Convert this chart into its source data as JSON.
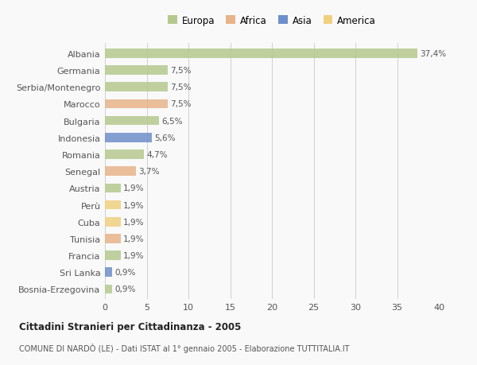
{
  "countries": [
    "Albania",
    "Germania",
    "Serbia/Montenegro",
    "Marocco",
    "Bulgaria",
    "Indonesia",
    "Romania",
    "Senegal",
    "Austria",
    "Perù",
    "Cuba",
    "Tunisia",
    "Francia",
    "Sri Lanka",
    "Bosnia-Erzegovina"
  ],
  "values": [
    37.4,
    7.5,
    7.5,
    7.5,
    6.5,
    5.6,
    4.7,
    3.7,
    1.9,
    1.9,
    1.9,
    1.9,
    1.9,
    0.9,
    0.9
  ],
  "labels": [
    "37,4%",
    "7,5%",
    "7,5%",
    "7,5%",
    "6,5%",
    "5,6%",
    "4,7%",
    "3,7%",
    "1,9%",
    "1,9%",
    "1,9%",
    "1,9%",
    "1,9%",
    "0,9%",
    "0,9%"
  ],
  "colors": [
    "#b5c98e",
    "#b5c98e",
    "#b5c98e",
    "#e8b48a",
    "#b5c98e",
    "#6e8fcb",
    "#b5c98e",
    "#e8b48a",
    "#b5c98e",
    "#f0d080",
    "#f0d080",
    "#e8b48a",
    "#b5c98e",
    "#6e8fcb",
    "#b5c98e"
  ],
  "legend_labels": [
    "Europa",
    "Africa",
    "Asia",
    "America"
  ],
  "legend_colors": [
    "#b5c98e",
    "#e8b48a",
    "#6e8fcb",
    "#f0d080"
  ],
  "title": "Cittadini Stranieri per Cittadinanza - 2005",
  "subtitle": "COMUNE DI NARDÒ (LE) - Dati ISTAT al 1° gennaio 2005 - Elaborazione TUTTITALIA.IT",
  "xlim": [
    0,
    40
  ],
  "xticks": [
    0,
    5,
    10,
    15,
    20,
    25,
    30,
    35,
    40
  ],
  "background_color": "#f9f9f9",
  "grid_color": "#d0d0d0",
  "bar_height": 0.55
}
